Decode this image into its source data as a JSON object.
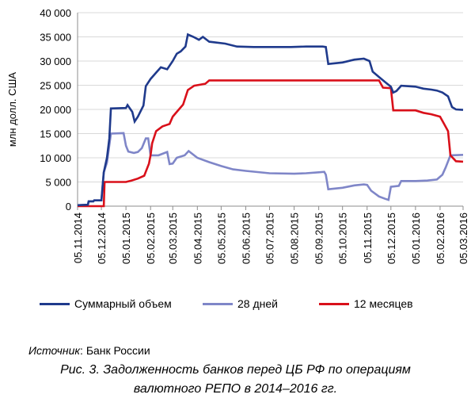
{
  "chart_data": {
    "type": "line",
    "ylabel": "млн долл. США",
    "ylim": [
      0,
      40000
    ],
    "yticks": [
      "0",
      "5 000",
      "10 000",
      "15 000",
      "20 000",
      "25 000",
      "30 000",
      "35 000",
      "40 000"
    ],
    "ytick_values": [
      0,
      5000,
      10000,
      15000,
      20000,
      25000,
      30000,
      35000,
      40000
    ],
    "xlim": [
      "2014-11-05",
      "2016-03-05"
    ],
    "xticks": [
      "05.11.2014",
      "05.12.2014",
      "05.01.2015",
      "05.02.2015",
      "05.03.2015",
      "05.04.2015",
      "05.05.2015",
      "05.06.2015",
      "05.07.2015",
      "05.08.2015",
      "05.09.2015",
      "05.10.2015",
      "05.11.2015",
      "05.12.2015",
      "05.01.2016",
      "05.02.2016",
      "05.03.2016"
    ],
    "xtick_dates": [
      "2014-11-05",
      "2014-12-05",
      "2015-01-05",
      "2015-02-05",
      "2015-03-05",
      "2015-04-05",
      "2015-05-05",
      "2015-06-05",
      "2015-07-05",
      "2015-08-05",
      "2015-09-05",
      "2015-10-05",
      "2015-11-05",
      "2015-12-05",
      "2016-01-05",
      "2016-02-05",
      "2016-03-05"
    ],
    "grid": "horizontal",
    "legend_position": "bottom",
    "series": [
      {
        "name": "Суммарный объем",
        "color": "#1f3a8c",
        "points": [
          [
            "2014-11-05",
            200
          ],
          [
            "2014-11-18",
            300
          ],
          [
            "2014-11-19",
            1000
          ],
          [
            "2014-11-25",
            1000
          ],
          [
            "2014-11-26",
            1200
          ],
          [
            "2014-12-05",
            1200
          ],
          [
            "2014-12-08",
            7000
          ],
          [
            "2014-12-12",
            10000
          ],
          [
            "2014-12-15",
            14000
          ],
          [
            "2014-12-17",
            20200
          ],
          [
            "2015-01-05",
            20300
          ],
          [
            "2015-01-07",
            20900
          ],
          [
            "2015-01-13",
            19500
          ],
          [
            "2015-01-16",
            17500
          ],
          [
            "2015-01-20",
            18500
          ],
          [
            "2015-01-27",
            20800
          ],
          [
            "2015-01-30",
            24800
          ],
          [
            "2015-02-05",
            26300
          ],
          [
            "2015-02-12",
            27600
          ],
          [
            "2015-02-18",
            28700
          ],
          [
            "2015-02-26",
            28300
          ],
          [
            "2015-03-05",
            30000
          ],
          [
            "2015-03-10",
            31500
          ],
          [
            "2015-03-15",
            32000
          ],
          [
            "2015-03-21",
            33000
          ],
          [
            "2015-03-24",
            35500
          ],
          [
            "2015-03-31",
            35000
          ],
          [
            "2015-04-07",
            34400
          ],
          [
            "2015-04-12",
            35000
          ],
          [
            "2015-04-20",
            34000
          ],
          [
            "2015-05-10",
            33600
          ],
          [
            "2015-05-25",
            33000
          ],
          [
            "2015-06-15",
            32900
          ],
          [
            "2015-07-10",
            32900
          ],
          [
            "2015-08-01",
            32900
          ],
          [
            "2015-08-20",
            33000
          ],
          [
            "2015-09-10",
            33000
          ],
          [
            "2015-09-14",
            32900
          ],
          [
            "2015-09-17",
            29400
          ],
          [
            "2015-10-05",
            29700
          ],
          [
            "2015-10-20",
            30300
          ],
          [
            "2015-11-01",
            30500
          ],
          [
            "2015-11-08",
            30000
          ],
          [
            "2015-11-12",
            27800
          ],
          [
            "2015-11-20",
            26700
          ],
          [
            "2015-11-28",
            25600
          ],
          [
            "2015-12-05",
            24700
          ],
          [
            "2015-12-08",
            23500
          ],
          [
            "2015-12-12",
            23800
          ],
          [
            "2015-12-18",
            24900
          ],
          [
            "2016-01-05",
            24700
          ],
          [
            "2016-01-15",
            24300
          ],
          [
            "2016-01-25",
            24100
          ],
          [
            "2016-02-01",
            23900
          ],
          [
            "2016-02-08",
            23500
          ],
          [
            "2016-02-15",
            22700
          ],
          [
            "2016-02-20",
            20500
          ],
          [
            "2016-02-25",
            20000
          ],
          [
            "2016-03-05",
            19900
          ]
        ]
      },
      {
        "name": "28 дней",
        "color": "#7f86c8",
        "points": [
          [
            "2014-11-05",
            200
          ],
          [
            "2014-11-18",
            300
          ],
          [
            "2014-11-19",
            1000
          ],
          [
            "2014-11-25",
            1000
          ],
          [
            "2014-11-26",
            1200
          ],
          [
            "2014-12-05",
            1200
          ],
          [
            "2014-12-08",
            7000
          ],
          [
            "2014-12-12",
            9000
          ],
          [
            "2014-12-17",
            15000
          ],
          [
            "2015-01-02",
            15100
          ],
          [
            "2015-01-05",
            12500
          ],
          [
            "2015-01-08",
            11300
          ],
          [
            "2015-01-15",
            11000
          ],
          [
            "2015-01-20",
            11200
          ],
          [
            "2015-01-25",
            12000
          ],
          [
            "2015-01-30",
            14000
          ],
          [
            "2015-02-02",
            14000
          ],
          [
            "2015-02-05",
            10500
          ],
          [
            "2015-02-15",
            10500
          ],
          [
            "2015-02-26",
            11200
          ],
          [
            "2015-03-01",
            8700
          ],
          [
            "2015-03-05",
            8800
          ],
          [
            "2015-03-10",
            10000
          ],
          [
            "2015-03-20",
            10500
          ],
          [
            "2015-03-25",
            11400
          ],
          [
            "2015-04-05",
            10000
          ],
          [
            "2015-04-20",
            9100
          ],
          [
            "2015-05-05",
            8300
          ],
          [
            "2015-05-20",
            7600
          ],
          [
            "2015-06-05",
            7300
          ],
          [
            "2015-07-05",
            6800
          ],
          [
            "2015-08-05",
            6700
          ],
          [
            "2015-08-20",
            6800
          ],
          [
            "2015-09-05",
            7000
          ],
          [
            "2015-09-12",
            7100
          ],
          [
            "2015-09-14",
            6500
          ],
          [
            "2015-09-17",
            3500
          ],
          [
            "2015-10-05",
            3800
          ],
          [
            "2015-10-20",
            4300
          ],
          [
            "2015-11-01",
            4500
          ],
          [
            "2015-11-05",
            4400
          ],
          [
            "2015-11-10",
            3200
          ],
          [
            "2015-11-20",
            2000
          ],
          [
            "2015-11-28",
            1500
          ],
          [
            "2015-12-02",
            1300
          ],
          [
            "2015-12-05",
            4000
          ],
          [
            "2015-12-15",
            4200
          ],
          [
            "2015-12-18",
            5200
          ],
          [
            "2016-01-05",
            5200
          ],
          [
            "2016-01-20",
            5300
          ],
          [
            "2016-02-01",
            5500
          ],
          [
            "2016-02-08",
            6500
          ],
          [
            "2016-02-12",
            8000
          ],
          [
            "2016-02-18",
            10500
          ],
          [
            "2016-03-05",
            10600
          ]
        ]
      },
      {
        "name": "12 месяцев",
        "color": "#d9101a",
        "points": [
          [
            "2014-11-05",
            0
          ],
          [
            "2014-12-08",
            0
          ],
          [
            "2014-12-09",
            5000
          ],
          [
            "2015-01-05",
            5000
          ],
          [
            "2015-01-12",
            5300
          ],
          [
            "2015-01-20",
            5700
          ],
          [
            "2015-01-28",
            6300
          ],
          [
            "2015-02-03",
            8800
          ],
          [
            "2015-02-05",
            10500
          ],
          [
            "2015-02-07",
            13000
          ],
          [
            "2015-02-12",
            15500
          ],
          [
            "2015-02-20",
            16500
          ],
          [
            "2015-03-01",
            17000
          ],
          [
            "2015-03-05",
            18500
          ],
          [
            "2015-03-10",
            19500
          ],
          [
            "2015-03-18",
            21000
          ],
          [
            "2015-03-24",
            24000
          ],
          [
            "2015-04-01",
            24900
          ],
          [
            "2015-04-15",
            25300
          ],
          [
            "2015-04-20",
            26000
          ],
          [
            "2015-11-20",
            26000
          ],
          [
            "2015-11-25",
            24500
          ],
          [
            "2015-12-05",
            24400
          ],
          [
            "2015-12-08",
            19800
          ],
          [
            "2016-01-05",
            19800
          ],
          [
            "2016-01-15",
            19300
          ],
          [
            "2016-01-25",
            19000
          ],
          [
            "2016-02-05",
            18500
          ],
          [
            "2016-02-10",
            17000
          ],
          [
            "2016-02-15",
            15500
          ],
          [
            "2016-02-18",
            10500
          ],
          [
            "2016-02-25",
            9300
          ],
          [
            "2016-03-05",
            9200
          ]
        ]
      }
    ]
  },
  "source": {
    "label": "Источник",
    "sep": ": ",
    "text": "Банк России"
  },
  "caption": {
    "line1": "Рис. 3. Задолженность банков перед ЦБ РФ по операциям",
    "line2": "валютного РЕПО в 2014–2016 гг."
  }
}
